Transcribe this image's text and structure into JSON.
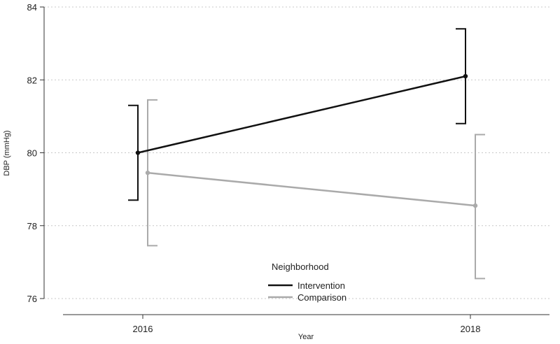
{
  "chart_data": {
    "type": "line",
    "title": "",
    "xlabel": "Year",
    "ylabel": "DBP (mmHg)",
    "categories": [
      "2016",
      "2018"
    ],
    "ylim": [
      76,
      84
    ],
    "yticks": [
      76,
      78,
      80,
      82,
      84
    ],
    "grid": "horizontal-dotted",
    "legend": {
      "title": "Neighborhood",
      "placement": "bottom-center"
    },
    "series": [
      {
        "name": "Intervention",
        "color": "#111111",
        "values": [
          80.0,
          82.1
        ],
        "ci_low": [
          78.7,
          80.8
        ],
        "ci_high": [
          81.3,
          83.4
        ]
      },
      {
        "name": "Comparison",
        "color": "#aaaaaa",
        "values": [
          79.45,
          78.55
        ],
        "ci_low": [
          77.45,
          76.55
        ],
        "ci_high": [
          81.45,
          80.5
        ]
      }
    ]
  }
}
